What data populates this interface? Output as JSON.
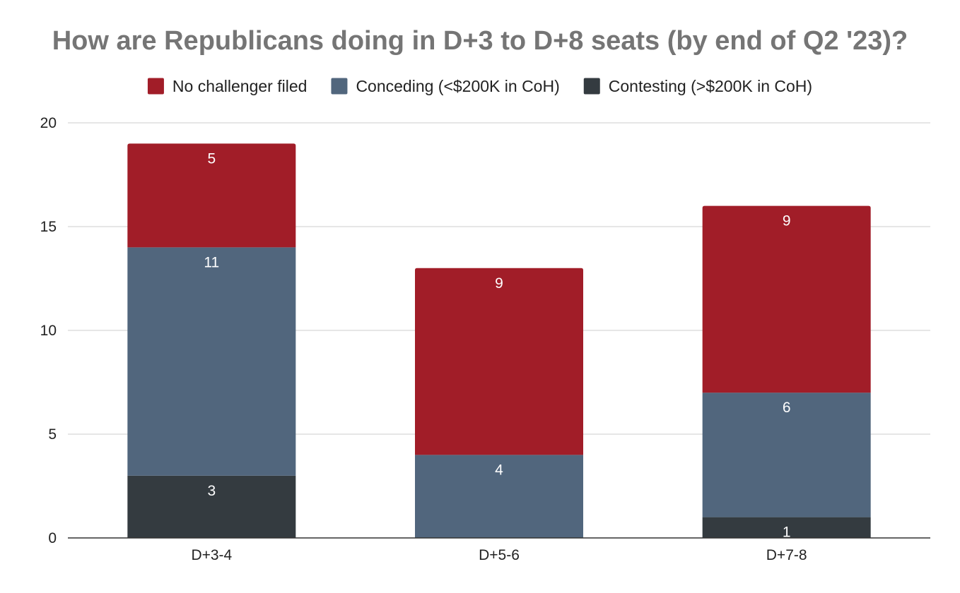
{
  "chart_data": {
    "type": "bar",
    "stacked": true,
    "title": "How are Republicans doing in D+3 to D+8 seats (by end of Q2 '23)?",
    "xlabel": "",
    "ylabel": "",
    "categories": [
      "D+3-4",
      "D+5-6",
      "D+7-8"
    ],
    "ylim": [
      0,
      20
    ],
    "yticks": [
      0,
      5,
      10,
      15,
      20
    ],
    "grid": true,
    "legend_position": "top",
    "series": [
      {
        "name": "Contesting (>$200K in CoH)",
        "color": "#343b40",
        "values": [
          3,
          0,
          1
        ]
      },
      {
        "name": "Conceding (<$200K in CoH)",
        "color": "#51667d",
        "values": [
          11,
          4,
          6
        ]
      },
      {
        "name": "No challenger filed",
        "color": "#a11d28",
        "values": [
          5,
          9,
          9
        ]
      }
    ],
    "legend_order": [
      "No challenger filed",
      "Conceding (<$200K in CoH)",
      "Contesting (>$200K in CoH)"
    ]
  }
}
